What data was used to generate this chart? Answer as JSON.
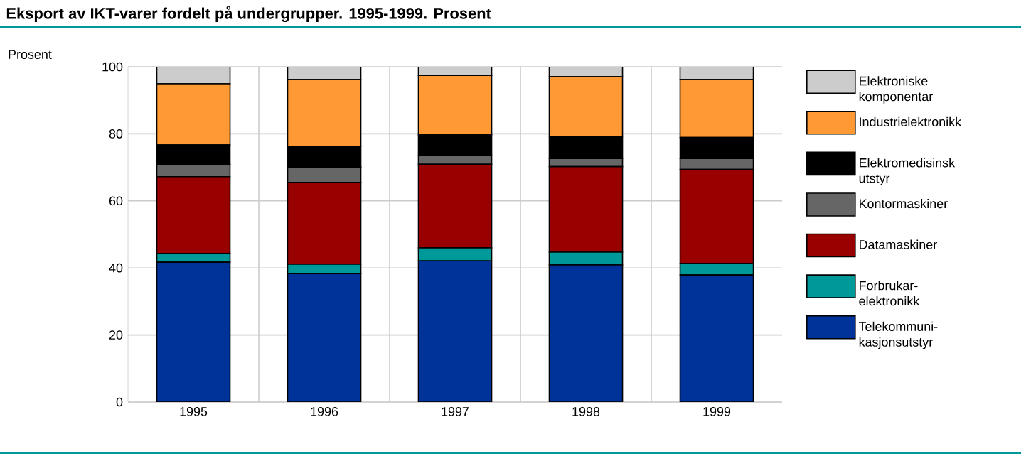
{
  "chart_data": {
    "type": "bar",
    "stacked": true,
    "title": "Eksport av IKT-varer fordelt på undergrupper. 1995-1999. Prosent",
    "ylabel": "Prosent",
    "categories": [
      "1995",
      "1996",
      "1997",
      "1998",
      "1999"
    ],
    "series": [
      {
        "name": "Telekommuni-kasjonsutstyr",
        "color": "#003399",
        "values": [
          41.7,
          38.3,
          42.1,
          40.9,
          37.9
        ]
      },
      {
        "name": "Forbrukar-elektronikk",
        "color": "#009999",
        "values": [
          2.6,
          2.8,
          3.9,
          3.8,
          3.4
        ]
      },
      {
        "name": "Datamaskiner",
        "color": "#990000",
        "values": [
          22.9,
          24.4,
          24.9,
          25.5,
          28.1
        ]
      },
      {
        "name": "Kontormaskiner",
        "color": "#666666",
        "values": [
          3.7,
          4.6,
          2.6,
          2.4,
          3.2
        ]
      },
      {
        "name": "Elektromedisinsk utstyr",
        "color": "#000000",
        "values": [
          5.8,
          6.2,
          6.2,
          6.7,
          6.3
        ]
      },
      {
        "name": "Industrielektronikk",
        "color": "#ff9933",
        "values": [
          18.2,
          19.9,
          17.7,
          17.7,
          17.3
        ]
      },
      {
        "name": "Elektroniske komponentar",
        "color": "#cccccc",
        "values": [
          5.1,
          3.8,
          2.6,
          3.0,
          3.8
        ]
      }
    ],
    "ylim": [
      0,
      100
    ],
    "yticks": [
      0,
      20,
      40,
      60,
      80,
      100
    ],
    "grid": true,
    "legend": "right"
  }
}
